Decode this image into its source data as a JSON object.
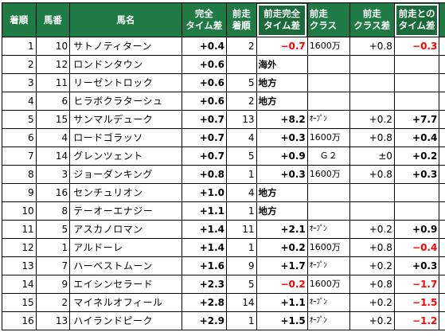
{
  "headers": {
    "rank": "着順",
    "num": "馬番",
    "name": "馬名",
    "time_diff": "完全\nタイム差",
    "prev_rank": "前走\n着順",
    "prev_time_diff": "前走完全\nタイム差",
    "prev_class": "前走\nクラス",
    "prev_class_diff": "前走\nクラス差",
    "diff_vs_prev": "前走との\nタイム差"
  },
  "rows": [
    {
      "rank": "1",
      "num": "10",
      "name": "サトノティターン",
      "time_diff": "+0.4",
      "prev_rank": "2",
      "prev_time_diff": "−0.7",
      "prev_class": "1600万",
      "prev_class_diff": "+0.8",
      "diff_vs_prev": "−0.3"
    },
    {
      "rank": "2",
      "num": "12",
      "name": "ロンドンタウン",
      "time_diff": "+0.6",
      "prev_rank": "",
      "prev_time_diff": "海外",
      "prev_class": "",
      "prev_class_diff": "",
      "diff_vs_prev": ""
    },
    {
      "rank": "3",
      "num": "11",
      "name": "リーゼントロック",
      "time_diff": "+0.6",
      "prev_rank": "5",
      "prev_time_diff": "地方",
      "prev_class": "",
      "prev_class_diff": "",
      "diff_vs_prev": ""
    },
    {
      "rank": "4",
      "num": "6",
      "name": "ヒラボクラターシュ",
      "time_diff": "+0.6",
      "prev_rank": "2",
      "prev_time_diff": "地方",
      "prev_class": "",
      "prev_class_diff": "",
      "diff_vs_prev": ""
    },
    {
      "rank": "5",
      "num": "15",
      "name": "サンマルデューク",
      "time_diff": "+0.7",
      "prev_rank": "13",
      "prev_time_diff": "+8.2",
      "prev_class": "ｵｰﾌﾟﾝ",
      "prev_class_diff": "+0.2",
      "diff_vs_prev": "+7.7"
    },
    {
      "rank": "6",
      "num": "4",
      "name": "ロードゴラッソ",
      "time_diff": "+0.7",
      "prev_rank": "4",
      "prev_time_diff": "+0.3",
      "prev_class": "1600万",
      "prev_class_diff": "+0.8",
      "diff_vs_prev": "+0.4"
    },
    {
      "rank": "7",
      "num": "14",
      "name": "グレンツェント",
      "time_diff": "+0.7",
      "prev_rank": "5",
      "prev_time_diff": "+0.9",
      "prev_class": "Ｇ２",
      "prev_class_diff": "±0",
      "diff_vs_prev": "+0.2"
    },
    {
      "rank": "8",
      "num": "3",
      "name": "ジョーダンキング",
      "time_diff": "+0.8",
      "prev_rank": "1",
      "prev_time_diff": "+0.3",
      "prev_class": "1600万",
      "prev_class_diff": "+0.8",
      "diff_vs_prev": "+0.3"
    },
    {
      "rank": "9",
      "num": "16",
      "name": "センチュリオン",
      "time_diff": "+1.0",
      "prev_rank": "4",
      "prev_time_diff": "地方",
      "prev_class": "",
      "prev_class_diff": "",
      "diff_vs_prev": ""
    },
    {
      "rank": "10",
      "num": "8",
      "name": "テーオーエナジー",
      "time_diff": "+1.1",
      "prev_rank": "1",
      "prev_time_diff": "地方",
      "prev_class": "",
      "prev_class_diff": "",
      "diff_vs_prev": ""
    },
    {
      "rank": "11",
      "num": "5",
      "name": "アスカノロマン",
      "time_diff": "+1.4",
      "prev_rank": "11",
      "prev_time_diff": "+2.1",
      "prev_class": "ｵｰﾌﾟﾝ",
      "prev_class_diff": "+0.2",
      "diff_vs_prev": "+0.9"
    },
    {
      "rank": "12",
      "num": "1",
      "name": "アルドーレ",
      "time_diff": "+1.4",
      "prev_rank": "1",
      "prev_time_diff": "+0.2",
      "prev_class": "1600万",
      "prev_class_diff": "+0.8",
      "diff_vs_prev": "−0.4"
    },
    {
      "rank": "13",
      "num": "7",
      "name": "ハーベストムーン",
      "time_diff": "+1.6",
      "prev_rank": "9",
      "prev_time_diff": "+1.7",
      "prev_class": "ｵｰﾌﾟﾝ",
      "prev_class_diff": "+0.2",
      "diff_vs_prev": "+0.3"
    },
    {
      "rank": "14",
      "num": "9",
      "name": "エイシンセラード",
      "time_diff": "+2.3",
      "prev_rank": "5",
      "prev_time_diff": "−0.2",
      "prev_class": "1600万",
      "prev_class_diff": "+0.8",
      "diff_vs_prev": "−1.7"
    },
    {
      "rank": "15",
      "num": "2",
      "name": "マイネルオフィール",
      "time_diff": "+2.8",
      "prev_rank": "14",
      "prev_time_diff": "+1.1",
      "prev_class": "ｵｰﾌﾟﾝ",
      "prev_class_diff": "+0.2",
      "diff_vs_prev": "−1.5"
    },
    {
      "rank": "16",
      "num": "13",
      "name": "ハイランドピーク",
      "time_diff": "+2.9",
      "prev_rank": "1",
      "prev_time_diff": "+1.5",
      "prev_class": "ｵｰﾌﾟﾝ",
      "prev_class_diff": "+0.2",
      "diff_vs_prev": "−1.2"
    }
  ],
  "colors": {
    "header_bg": "#1f7a45",
    "negative": "#ff0000"
  }
}
